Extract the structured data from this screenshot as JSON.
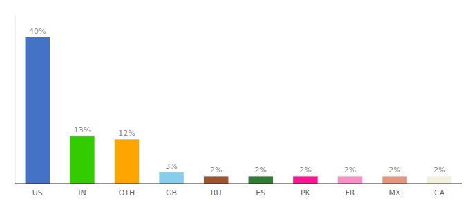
{
  "chart_data": {
    "type": "bar",
    "categories": [
      "US",
      "IN",
      "OTH",
      "GB",
      "RU",
      "ES",
      "PK",
      "FR",
      "MX",
      "CA"
    ],
    "values": [
      40,
      13,
      12,
      3,
      2,
      2,
      2,
      2,
      2,
      2
    ],
    "value_labels": [
      "40%",
      "13%",
      "12%",
      "3%",
      "2%",
      "2%",
      "2%",
      "2%",
      "2%",
      "2%"
    ],
    "colors": [
      "#4472C4",
      "#33CC00",
      "#FFA500",
      "#87CEEB",
      "#A0522D",
      "#2E7D32",
      "#FF1493",
      "#FF8DC7",
      "#E8957D",
      "#F5F0DC"
    ],
    "ylim": [
      0,
      46
    ],
    "data_labels": true,
    "tick_labels": "x",
    "grid": false
  }
}
